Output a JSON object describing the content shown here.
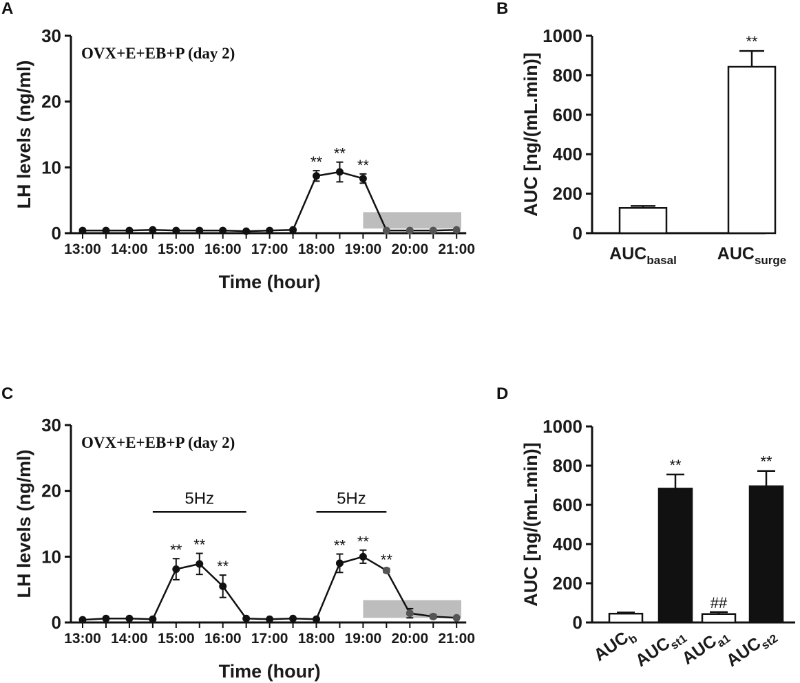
{
  "chart_data": [
    {
      "panel": "A",
      "type": "line",
      "annotation": "OVX+E+EB+P (day 2)",
      "xlabel": "Time (hour)",
      "ylabel": "LH levels (ng/ml)",
      "ylim": [
        0,
        30
      ],
      "yticks": [
        "0",
        "10",
        "20",
        "30"
      ],
      "xtick_labels": [
        "13:00",
        "14:00",
        "15:00",
        "16:00",
        "17:00",
        "18:00",
        "19:00",
        "20:00",
        "21:00"
      ],
      "x": [
        13,
        13.5,
        14,
        14.5,
        15,
        15.5,
        16,
        16.5,
        17,
        17.5,
        18,
        18.5,
        19,
        19.5,
        20,
        20.5,
        21
      ],
      "series": [
        {
          "name": "LH",
          "values": [
            0.4,
            0.4,
            0.4,
            0.5,
            0.4,
            0.4,
            0.4,
            0.3,
            0.4,
            0.5,
            8.7,
            9.3,
            8.3,
            0.4,
            0.4,
            0.4,
            0.5
          ],
          "errors": [
            0.1,
            0.1,
            0.1,
            0.1,
            0.1,
            0.1,
            0.1,
            0.1,
            0.1,
            0.1,
            0.8,
            1.5,
            0.7,
            0.1,
            0.1,
            0.1,
            0.1
          ]
        }
      ],
      "significance": [
        {
          "x": 18,
          "label": "**"
        },
        {
          "x": 18.5,
          "label": "**"
        },
        {
          "x": 19,
          "label": "**"
        }
      ],
      "shaded_region": {
        "x0": 19,
        "x1": 21.1,
        "y0": 0.7,
        "y1": 3.2
      },
      "stim_bars": []
    },
    {
      "panel": "B",
      "type": "bar",
      "ylabel": "AUC [ng/(mL.min)]",
      "ylim": [
        0,
        1000
      ],
      "yticks": [
        "0",
        "200",
        "400",
        "600",
        "800",
        "1000"
      ],
      "categories": [
        {
          "main": "AUC",
          "sub": "basal"
        },
        {
          "main": "AUC",
          "sub": "surge"
        }
      ],
      "values": [
        128,
        843
      ],
      "errors": [
        10,
        80
      ],
      "fill": [
        "#ffffff",
        "#ffffff"
      ],
      "significance": [
        "",
        "**"
      ],
      "rotate_labels": false
    },
    {
      "panel": "C",
      "type": "line",
      "annotation": "OVX+E+EB+P (day 2)",
      "xlabel": "Time (hour)",
      "ylabel": "LH levels (ng/ml)",
      "ylim": [
        0,
        30
      ],
      "yticks": [
        "0",
        "10",
        "20",
        "30"
      ],
      "xtick_labels": [
        "13:00",
        "14:00",
        "15:00",
        "16:00",
        "17:00",
        "18:00",
        "19:00",
        "20:00",
        "21:00"
      ],
      "x": [
        13,
        13.5,
        14,
        14.5,
        15,
        15.5,
        16,
        16.5,
        17,
        17.5,
        18,
        18.5,
        19,
        19.5,
        20,
        20.5,
        21
      ],
      "series": [
        {
          "name": "LH",
          "values": [
            0.4,
            0.6,
            0.6,
            0.5,
            8.1,
            8.9,
            5.5,
            0.6,
            0.5,
            0.6,
            0.5,
            9.0,
            10.0,
            7.9,
            1.4,
            0.9,
            0.7
          ],
          "errors": [
            0.1,
            0.1,
            0.1,
            0.1,
            1.6,
            1.6,
            1.7,
            0.1,
            0.1,
            0.1,
            0.1,
            1.4,
            1.0,
            0.3,
            0.7,
            0.3,
            0.2
          ]
        }
      ],
      "significance": [
        {
          "x": 15,
          "label": "**"
        },
        {
          "x": 15.5,
          "label": "**"
        },
        {
          "x": 16,
          "label": "**"
        },
        {
          "x": 18.5,
          "label": "**"
        },
        {
          "x": 19,
          "label": "**"
        },
        {
          "x": 19.5,
          "label": "**"
        }
      ],
      "shaded_region": {
        "x0": 19,
        "x1": 21.1,
        "y0": 0.7,
        "y1": 3.4
      },
      "stim_bars": [
        {
          "x0": 14.5,
          "x1": 16.5,
          "y": 16.8,
          "label": "5Hz"
        },
        {
          "x0": 18,
          "x1": 19.5,
          "y": 16.8,
          "label": "5Hz"
        }
      ]
    },
    {
      "panel": "D",
      "type": "bar",
      "ylabel": "AUC [ng/(mL.min)]",
      "ylim": [
        0,
        1000
      ],
      "yticks": [
        "0",
        "200",
        "400",
        "600",
        "800",
        "1000"
      ],
      "categories": [
        {
          "main": "AUC",
          "sub": "b"
        },
        {
          "main": "AUC",
          "sub": "st1"
        },
        {
          "main": "AUC",
          "sub": "a1"
        },
        {
          "main": "AUC",
          "sub": "st2"
        }
      ],
      "values": [
        45,
        683,
        43,
        695
      ],
      "errors": [
        6,
        72,
        10,
        78
      ],
      "fill": [
        "#ffffff",
        "#111111",
        "#ffffff",
        "#111111"
      ],
      "significance": [
        "",
        "**",
        "##",
        "**"
      ],
      "rotate_labels": true
    }
  ]
}
